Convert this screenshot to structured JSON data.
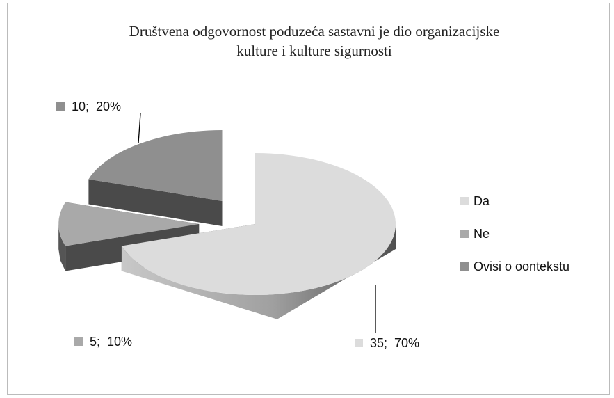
{
  "chart_data": {
    "type": "pie3d",
    "title": "Društvena odgovornost poduzeća sastavni je dio organizacijske kulture i kulture sigurnosti",
    "categories": [
      "Da",
      "Ne",
      "Ovisi o oontekstu"
    ],
    "values": [
      35,
      5,
      10
    ],
    "value_labels": [
      "35;  70%",
      "5;  10%",
      "10;  20%"
    ],
    "colors": [
      "#dcdcdc",
      "#a9a9a9",
      "#8f8f8f"
    ],
    "legend": "right"
  }
}
